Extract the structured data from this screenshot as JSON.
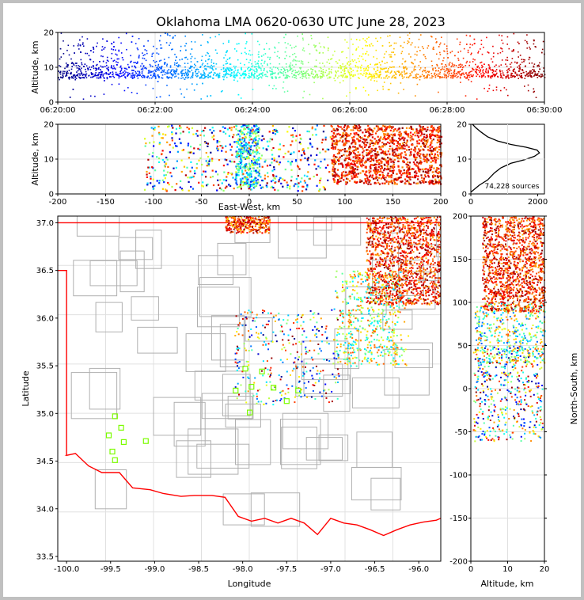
{
  "chart_data": {
    "type": "scatter",
    "title": "Oklahoma LMA 0620-0630 UTC June 28, 2023",
    "source_count_label": "74,228 sources",
    "colormap": "jet",
    "colormap_colors": [
      "#00007f",
      "#0000ff",
      "#007fff",
      "#00ffff",
      "#7fff7f",
      "#ffff00",
      "#ff7f00",
      "#ff0000",
      "#7f0000"
    ],
    "boundary_color": "#ff0000",
    "county_color": "#b0b0b0",
    "site_marker_color": "#7cfc00",
    "time_height": {
      "ylabel": "Altitude, km",
      "ylim": [
        0,
        20
      ],
      "yticks": [
        "0",
        "10",
        "20"
      ],
      "xticks": [
        "06:20:00",
        "06:22:00",
        "06:24:00",
        "06:26:00",
        "06:28:00",
        "06:30:00"
      ]
    },
    "ew_height": {
      "ylabel": "Altitude, km",
      "xlabel": "East-West, km",
      "xlim": [
        -200,
        200
      ],
      "ylim": [
        0,
        20
      ],
      "xticks": [
        "-200",
        "-150",
        "-100",
        "-50",
        "0",
        "50",
        "100",
        "150",
        "200"
      ],
      "yticks": [
        "0",
        "10",
        "20"
      ]
    },
    "histogram": {
      "xlim": [
        0,
        2200
      ],
      "ylim": [
        0,
        20
      ],
      "xticks": [
        "0",
        "2000"
      ],
      "yticks": [
        "0",
        "10",
        "20"
      ],
      "profile": [
        [
          0,
          0.5
        ],
        [
          250,
          2.5
        ],
        [
          500,
          4
        ],
        [
          700,
          6
        ],
        [
          900,
          7.5
        ],
        [
          1200,
          8.8
        ],
        [
          1600,
          9.8
        ],
        [
          1900,
          10.8
        ],
        [
          2050,
          11.8
        ],
        [
          1980,
          12.6
        ],
        [
          1650,
          13.4
        ],
        [
          1200,
          14.2
        ],
        [
          800,
          15.2
        ],
        [
          500,
          16.4
        ],
        [
          300,
          17.8
        ],
        [
          150,
          19
        ],
        [
          50,
          20
        ]
      ]
    },
    "plan": {
      "xlabel": "Longitude",
      "ylabel": "Latitude",
      "xlim": [
        -100.1,
        -95.75
      ],
      "ylim": [
        33.45,
        37.07
      ],
      "xticks": [
        "-100.0",
        "-99.5",
        "-99.0",
        "-98.5",
        "-98.0",
        "-97.5",
        "-97.0",
        "-96.5",
        "-96.0"
      ],
      "yticks": [
        "33.5",
        "34.0",
        "34.5",
        "35.0",
        "35.5",
        "36.0",
        "36.5",
        "37.0"
      ],
      "stations": [
        [
          -99.45,
          34.97
        ],
        [
          -99.38,
          34.85
        ],
        [
          -99.35,
          34.7
        ],
        [
          -99.52,
          34.77
        ],
        [
          -99.48,
          34.6
        ],
        [
          -99.45,
          34.51
        ],
        [
          -99.1,
          34.71
        ],
        [
          -98.08,
          35.24
        ],
        [
          -97.97,
          35.47
        ],
        [
          -97.9,
          35.28
        ],
        [
          -97.92,
          35.01
        ],
        [
          -97.78,
          35.44
        ],
        [
          -97.65,
          35.27
        ],
        [
          -97.5,
          35.13
        ],
        [
          -97.37,
          35.24
        ]
      ]
    },
    "ns_alt": {
      "xlabel": "Altitude, km",
      "ylabel": "North-South, km",
      "xlim": [
        0,
        20
      ],
      "ylim": [
        -200,
        200
      ],
      "xticks": [
        "0",
        "10",
        "20"
      ],
      "yticks": [
        "-200",
        "-150",
        "-100",
        "-50",
        "0",
        "50",
        "100",
        "150",
        "200"
      ]
    }
  }
}
